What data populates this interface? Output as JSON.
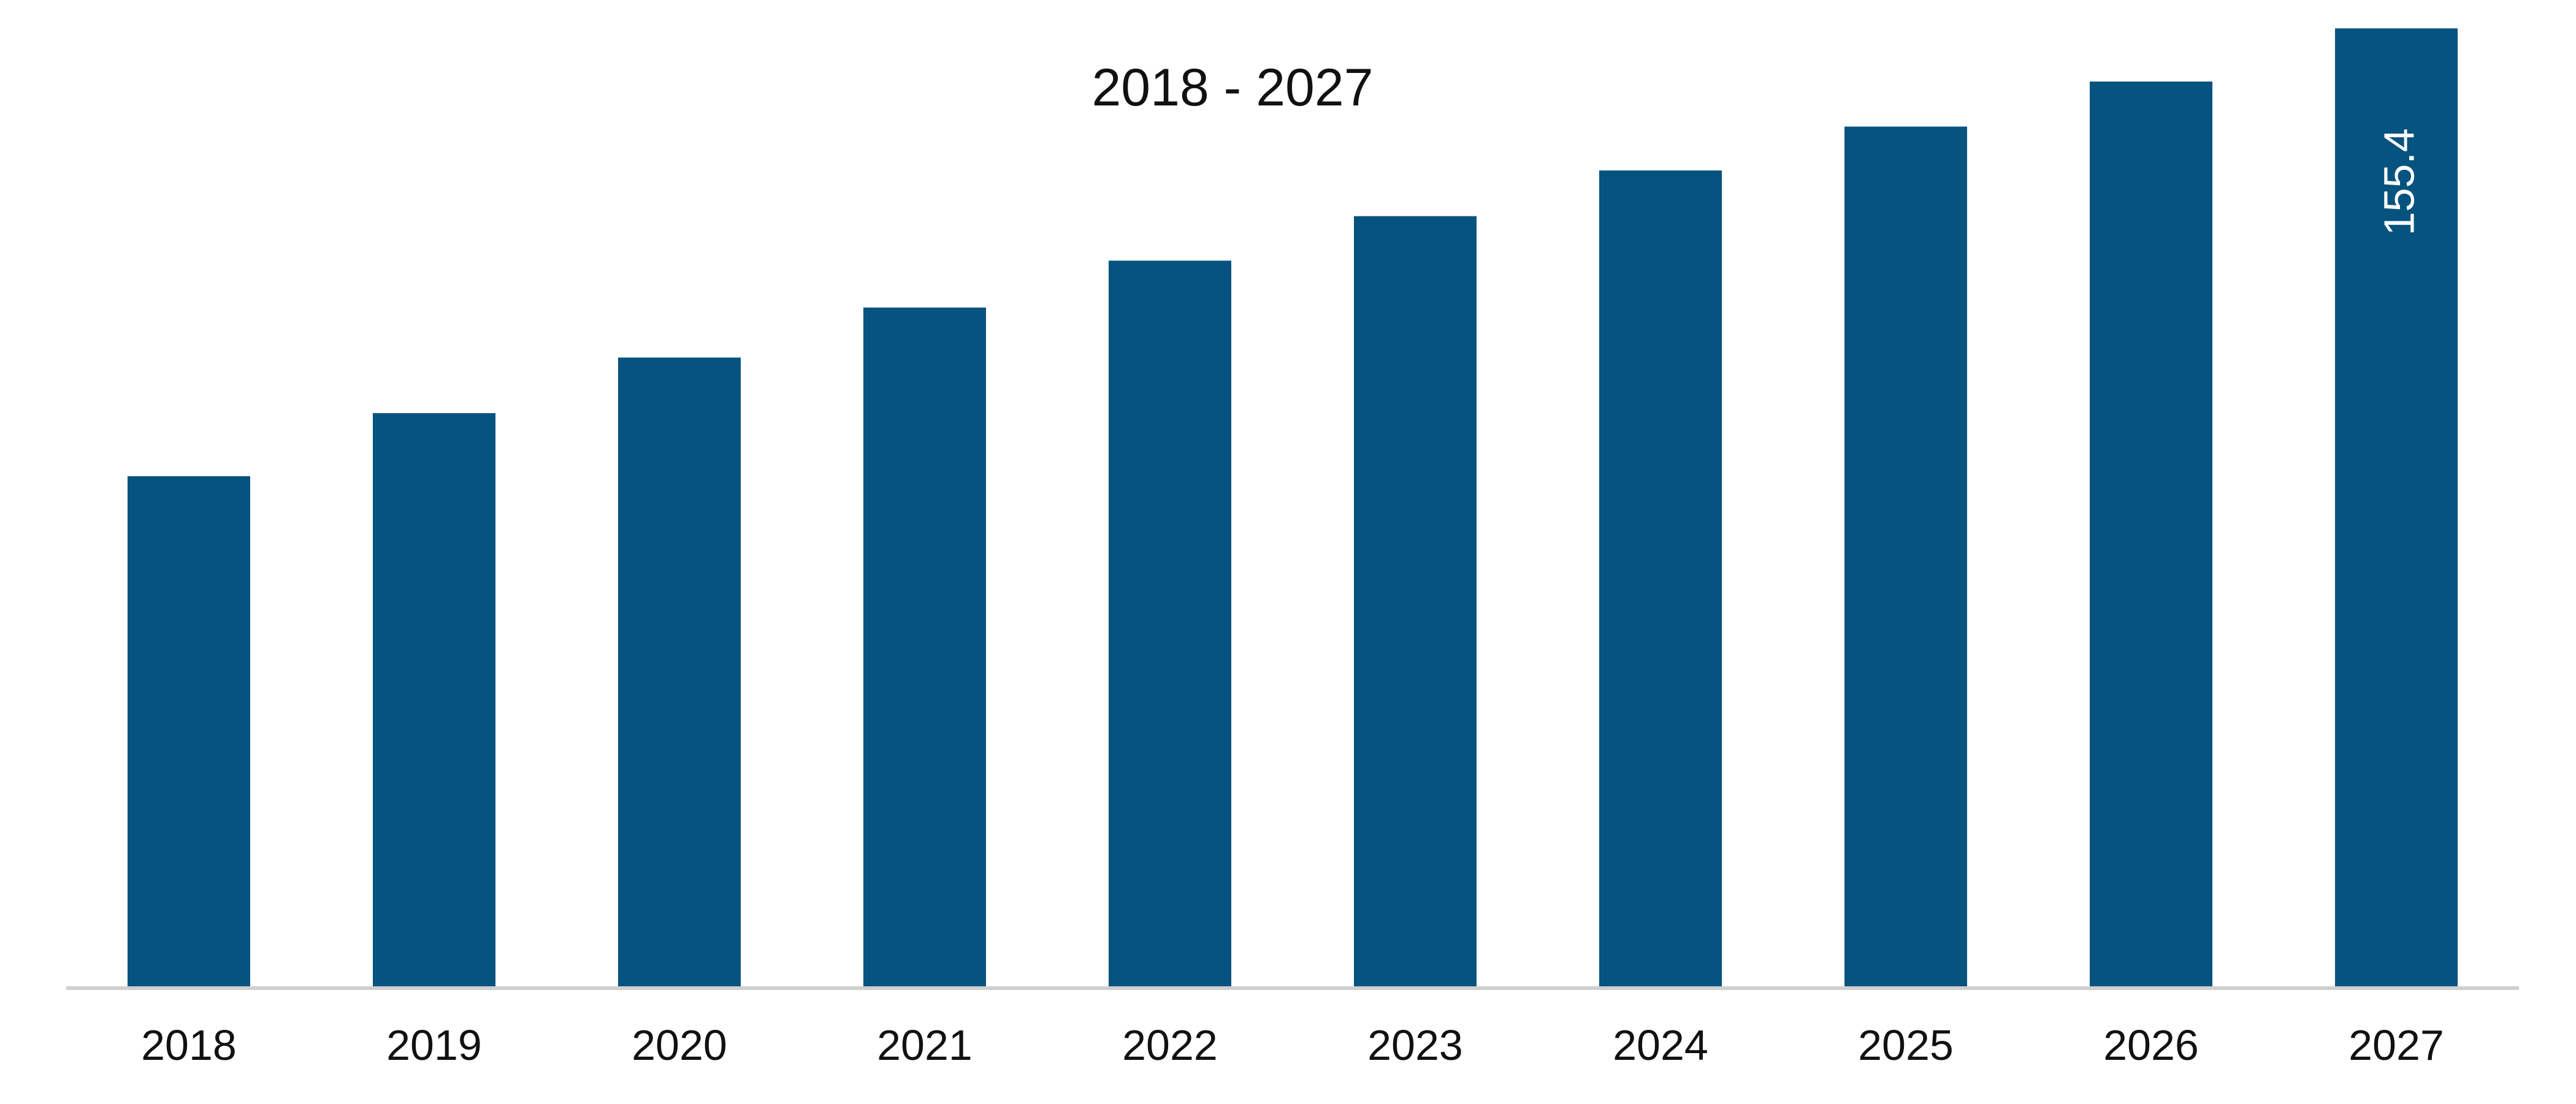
{
  "chart_data": {
    "type": "bar",
    "title": "2018 - 2027",
    "xlabel": "",
    "ylabel": "",
    "categories": [
      "2018",
      "2019",
      "2020",
      "2021",
      "2022",
      "2023",
      "2024",
      "2025",
      "2026",
      "2027"
    ],
    "values": [
      82.9,
      93.1,
      102.1,
      110.2,
      117.8,
      125.0,
      132.4,
      139.5,
      146.8,
      155.4
    ],
    "data_labels": {
      "2027": "155.4"
    },
    "ylim": [
      0,
      160
    ],
    "grid": false,
    "legend": "none",
    "bar_color": "#07537f",
    "axis_color": "#cfcfcf"
  }
}
